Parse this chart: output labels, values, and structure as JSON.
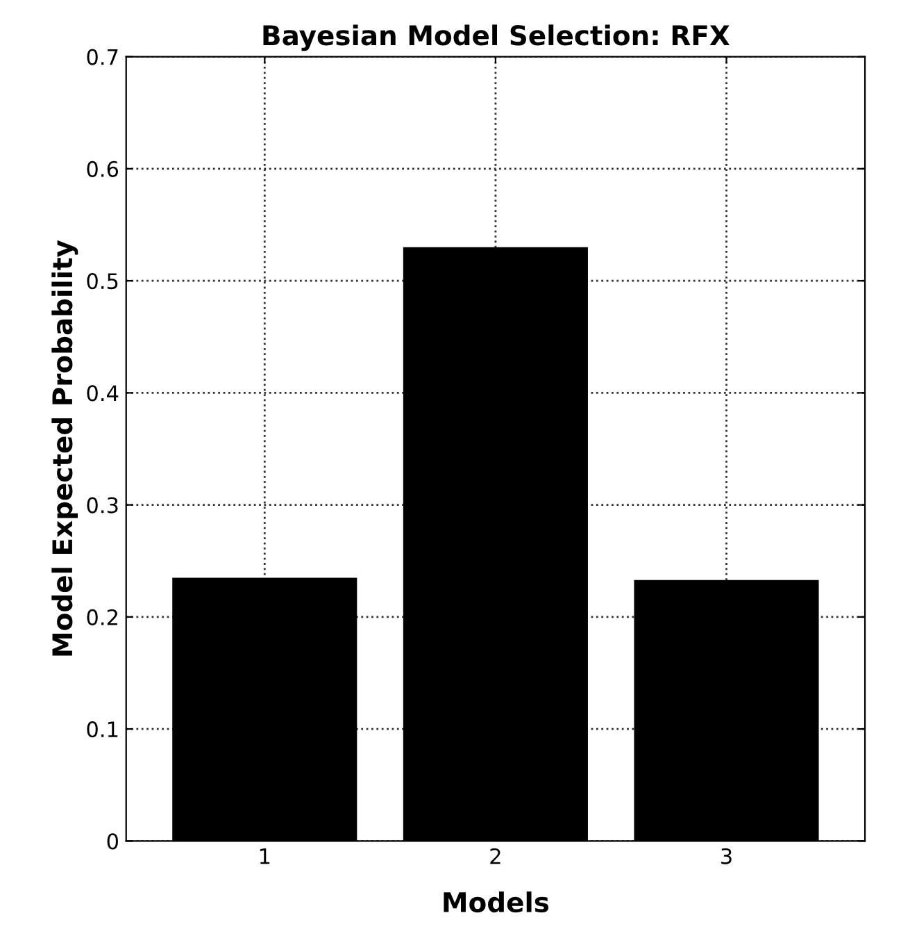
{
  "chart_data": {
    "type": "bar",
    "title": "Bayesian Model Selection: RFX",
    "xlabel": "Models",
    "ylabel": "Model Expected Probability",
    "categories": [
      "1",
      "2",
      "3"
    ],
    "values": [
      0.235,
      0.53,
      0.233
    ],
    "color": "#000000",
    "ylim": [
      0,
      0.7
    ],
    "yticks": [
      0,
      0.1,
      0.2,
      0.3,
      0.4,
      0.5,
      0.6,
      0.7
    ],
    "grid": true
  }
}
